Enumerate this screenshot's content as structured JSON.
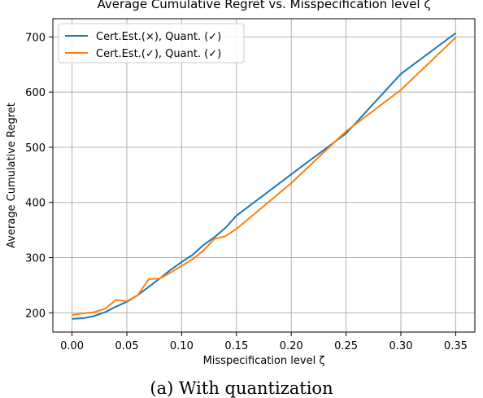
{
  "chart_data": {
    "type": "line",
    "title": "Average Cumulative Regret vs. Misspecification level ζ",
    "xlabel": "Misspecification level ζ",
    "ylabel": "Average Cumulative Regret",
    "xlim": [
      -0.0175,
      0.3675
    ],
    "ylim": [
      165,
      733
    ],
    "xticks": [
      0.0,
      0.05,
      0.1,
      0.15,
      0.2,
      0.25,
      0.3,
      0.35
    ],
    "xtick_labels": [
      "0.00",
      "0.05",
      "0.10",
      "0.15",
      "0.20",
      "0.25",
      "0.30",
      "0.35"
    ],
    "yticks": [
      200,
      300,
      400,
      500,
      600,
      700
    ],
    "ytick_labels": [
      "200",
      "300",
      "400",
      "500",
      "600",
      "700"
    ],
    "grid": true,
    "legend": "top-left",
    "series": [
      {
        "name": "Cert.Est.(×), Quant. (✓)",
        "color": "#1f77b4",
        "x": [
          0.0,
          0.01,
          0.02,
          0.03,
          0.04,
          0.05,
          0.06,
          0.07,
          0.08,
          0.09,
          0.1,
          0.11,
          0.12,
          0.13,
          0.14,
          0.15,
          0.2,
          0.25,
          0.3,
          0.35
        ],
        "y": [
          189,
          190,
          194,
          201,
          211,
          220,
          232,
          247,
          262,
          278,
          292,
          305,
          323,
          337,
          354,
          376,
          451,
          525,
          633,
          707
        ]
      },
      {
        "name": "Cert.Est.(✓), Quant. (✓)",
        "color": "#ff7f0e",
        "x": [
          0.0,
          0.01,
          0.02,
          0.03,
          0.04,
          0.05,
          0.06,
          0.07,
          0.08,
          0.09,
          0.1,
          0.11,
          0.12,
          0.13,
          0.14,
          0.15,
          0.2,
          0.25,
          0.3,
          0.35
        ],
        "y": [
          196,
          199,
          201,
          207,
          223,
          221,
          232,
          261,
          262,
          273,
          285,
          297,
          313,
          334,
          339,
          352,
          435,
          529,
          604,
          699
        ]
      }
    ]
  },
  "caption": "(a) With quantization"
}
